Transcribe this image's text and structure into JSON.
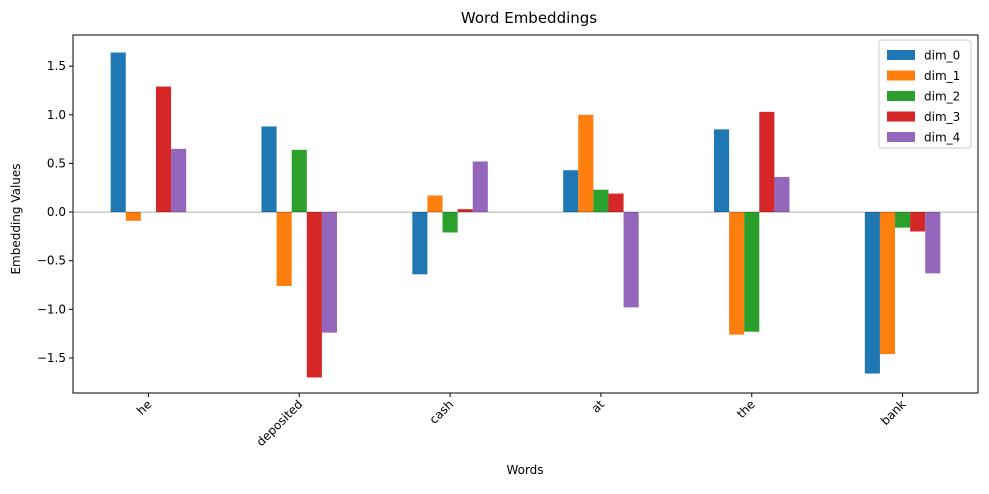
{
  "chart_data": {
    "type": "bar",
    "title": "Word Embeddings",
    "xlabel": "Words",
    "ylabel": "Embedding Values",
    "categories": [
      "he",
      "deposited",
      "cash",
      "at",
      "the",
      "bank"
    ],
    "series": [
      {
        "name": "dim_0",
        "color": "#1f77b4",
        "values": [
          1.64,
          0.88,
          -0.64,
          0.43,
          0.85,
          -1.66
        ]
      },
      {
        "name": "dim_1",
        "color": "#ff7f0e",
        "values": [
          -0.09,
          -0.76,
          0.17,
          1.0,
          -1.26,
          -1.46
        ]
      },
      {
        "name": "dim_2",
        "color": "#2ca02c",
        "values": [
          0.0,
          0.64,
          -0.21,
          0.23,
          -1.23,
          -0.16
        ]
      },
      {
        "name": "dim_3",
        "color": "#d62728",
        "values": [
          1.29,
          -1.7,
          0.03,
          0.19,
          1.03,
          -0.2
        ]
      },
      {
        "name": "dim_4",
        "color": "#9467bd",
        "values": [
          0.65,
          -1.24,
          0.52,
          -0.98,
          0.36,
          -0.63
        ]
      }
    ],
    "ylim": [
      -1.86,
      1.82
    ],
    "yticks": [
      -1.5,
      -1.0,
      -0.5,
      0.0,
      0.5,
      1.0,
      1.5
    ],
    "ytick_labels": [
      "−1.5",
      "−1.0",
      "−0.5",
      "0.0",
      "0.5",
      "1.0",
      "1.5"
    ],
    "grid": false,
    "legend_position": "top-right"
  }
}
